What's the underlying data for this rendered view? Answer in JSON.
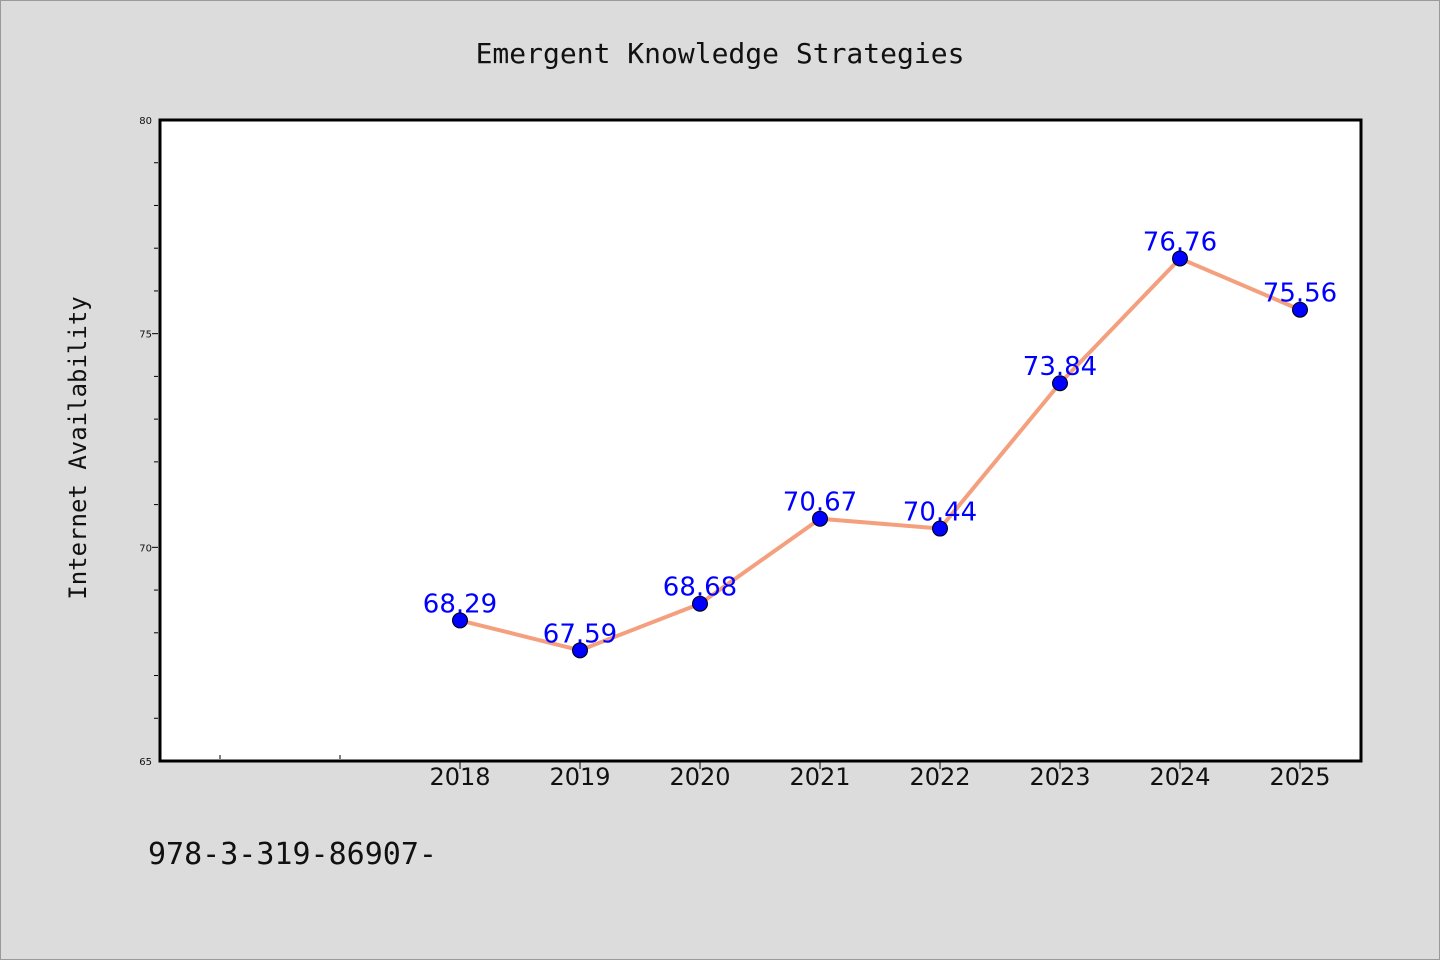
{
  "chart_data": {
    "type": "line",
    "title": "Emergent Knowledge Strategies",
    "xlabel": "",
    "ylabel": "Internet Availability",
    "categories": [
      "2018",
      "2019",
      "2020",
      "2021",
      "2022",
      "2023",
      "2024",
      "2025"
    ],
    "series": [
      {
        "values": [
          68.29,
          67.59,
          68.68,
          70.67,
          70.44,
          73.84,
          76.76,
          75.56
        ]
      }
    ],
    "data_labels": [
      "68.29",
      "67.59",
      "68.68",
      "70.67",
      "70.44",
      "73.84",
      "76.76",
      "75.56"
    ],
    "ylim": [
      65,
      80
    ],
    "yticks": [
      "65",
      "70",
      "75",
      "80"
    ],
    "grid": false,
    "line_color": "#f4a07e",
    "marker_color": "#0000ff",
    "label_color": "#0000ff"
  },
  "footnote": "978-3-319-86907-"
}
